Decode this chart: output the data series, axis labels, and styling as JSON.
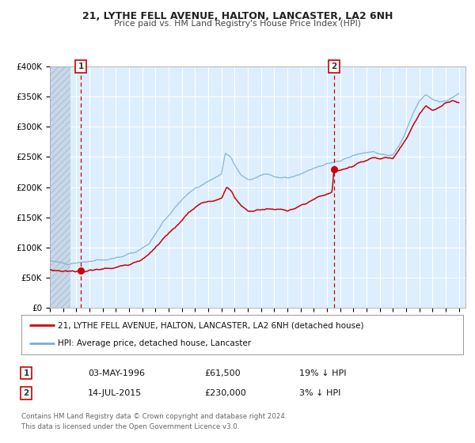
{
  "title1": "21, LYTHE FELL AVENUE, HALTON, LANCASTER, LA2 6NH",
  "title2": "Price paid vs. HM Land Registry's House Price Index (HPI)",
  "ylim": [
    0,
    400000
  ],
  "xlim_start": 1994.0,
  "xlim_end": 2025.5,
  "yticks": [
    0,
    50000,
    100000,
    150000,
    200000,
    250000,
    300000,
    350000,
    400000
  ],
  "ytick_labels": [
    "£0",
    "£50K",
    "£100K",
    "£150K",
    "£200K",
    "£250K",
    "£300K",
    "£350K",
    "£400K"
  ],
  "xtick_years": [
    1994,
    1995,
    1996,
    1997,
    1998,
    1999,
    2000,
    2001,
    2002,
    2003,
    2004,
    2005,
    2006,
    2007,
    2008,
    2009,
    2010,
    2011,
    2012,
    2013,
    2014,
    2015,
    2016,
    2017,
    2018,
    2019,
    2020,
    2021,
    2022,
    2023,
    2024,
    2025
  ],
  "sale1_x": 1996.34,
  "sale1_y": 61500,
  "sale1_label": "1",
  "sale2_x": 2015.54,
  "sale2_y": 230000,
  "sale2_label": "2",
  "legend_red": "21, LYTHE FELL AVENUE, HALTON, LANCASTER, LA2 6NH (detached house)",
  "legend_blue": "HPI: Average price, detached house, Lancaster",
  "info1_num": "1",
  "info1_date": "03-MAY-1996",
  "info1_price": "£61,500",
  "info1_hpi": "19% ↓ HPI",
  "info2_num": "2",
  "info2_date": "14-JUL-2015",
  "info2_price": "£230,000",
  "info2_hpi": "3% ↓ HPI",
  "footer1": "Contains HM Land Registry data © Crown copyright and database right 2024.",
  "footer2": "This data is licensed under the Open Government Licence v3.0.",
  "red_color": "#cc0000",
  "blue_color": "#7ab0d4",
  "bg_color": "#ddeeff",
  "grid_color": "#ffffff",
  "vline_color": "#cc0000"
}
